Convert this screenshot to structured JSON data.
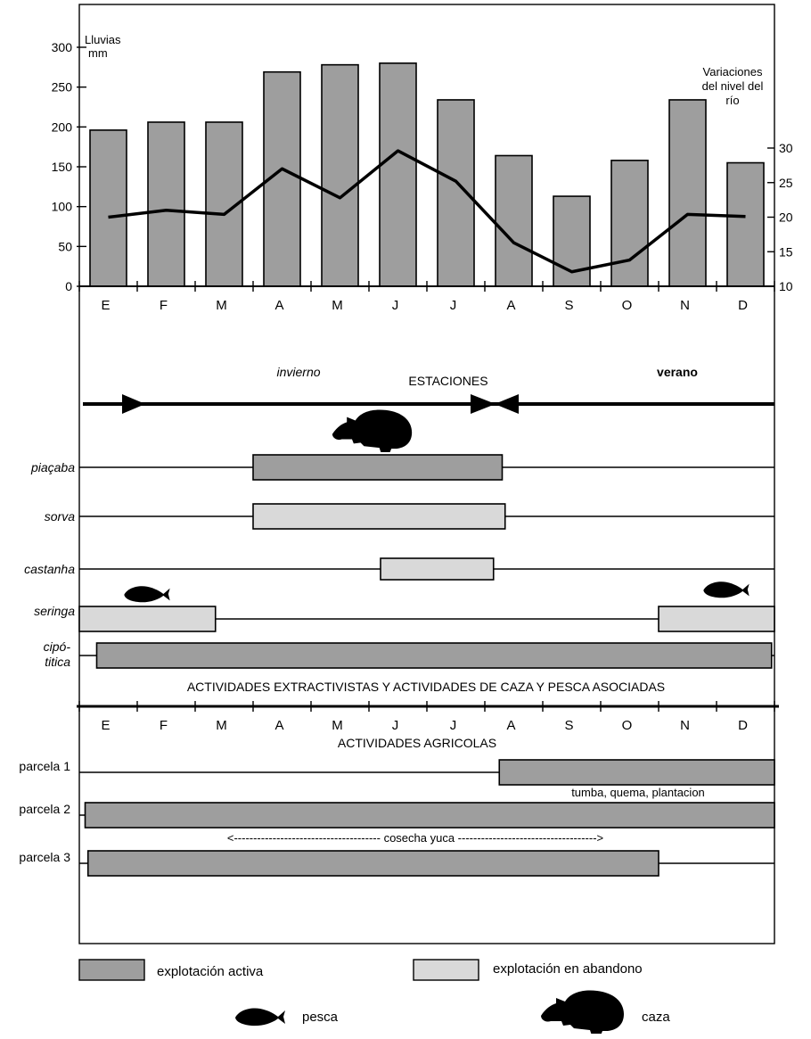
{
  "colors": {
    "active": "#9e9e9e",
    "abandoned": "#d9d9d9",
    "ink": "#000000"
  },
  "chart_data": {
    "type": "bar",
    "categories": [
      "E",
      "F",
      "M",
      "A",
      "M",
      "J",
      "J",
      "A",
      "S",
      "O",
      "N",
      "D"
    ],
    "series": [
      {
        "values": [
          196,
          206,
          206,
          269,
          278,
          280,
          234,
          164,
          113,
          158,
          234,
          155
        ]
      }
    ],
    "line_series": {
      "values": [
        20,
        21,
        20.4,
        27,
        22.8,
        29.6,
        25.2,
        16.3,
        12.1,
        13.8,
        20.4,
        20.1
      ]
    },
    "ylabel": "Lluvias mm",
    "y2label": "Variaciones del nivel del río",
    "ylim": [
      0,
      300
    ],
    "yticks": [
      "0",
      "50",
      "100",
      "150",
      "200",
      "250",
      "300"
    ],
    "y2lim": [
      10,
      30
    ],
    "y2ticks": [
      "10",
      "15",
      "20",
      "25",
      "30"
    ]
  },
  "seasons": {
    "label": "ESTACIONES",
    "winter": "invierno",
    "summer": "verano"
  },
  "extractive": {
    "title": "ACTIVIDADES EXTRACTIVISTAS Y ACTIVIDADES DE CAZA Y PESCA ASOCIADAS",
    "rows": [
      {
        "label": "piaçaba",
        "status": "active",
        "segments": [
          [
            3.0,
            7.3
          ]
        ]
      },
      {
        "label": "sorva",
        "status": "abandoned",
        "segments": [
          [
            3.0,
            7.35
          ]
        ]
      },
      {
        "label": "castanha",
        "status": "abandoned",
        "segments": [
          [
            5.2,
            7.15
          ]
        ]
      },
      {
        "label": "seringa",
        "status": "abandoned",
        "segments": [
          [
            0,
            2.35
          ],
          [
            10.0,
            12
          ]
        ]
      },
      {
        "label": "cipó-titica",
        "status": "active",
        "segments": [
          [
            0.3,
            11.95
          ]
        ]
      }
    ]
  },
  "agricultural": {
    "title": "ACTIVIDADES AGRICOLAS",
    "months": [
      "E",
      "F",
      "M",
      "A",
      "M",
      "J",
      "J",
      "A",
      "S",
      "O",
      "N",
      "D"
    ],
    "rows": [
      {
        "label": "parcela 1",
        "status": "active",
        "segments": [
          [
            7.25,
            12
          ]
        ],
        "note": "tumba,      quema,   plantacion"
      },
      {
        "label": "parcela 2",
        "status": "active",
        "segments": [
          [
            0.1,
            12
          ]
        ],
        "note": "<-------------------------------------- cosecha yuca ------------------------------------>"
      },
      {
        "label": "parcela 3",
        "status": "active",
        "segments": [
          [
            0.15,
            10.0
          ]
        ]
      }
    ]
  },
  "legend": {
    "active": "explotación activa",
    "abandoned": "explotación en abandono",
    "fishing": "pesca",
    "hunting": "caza"
  }
}
